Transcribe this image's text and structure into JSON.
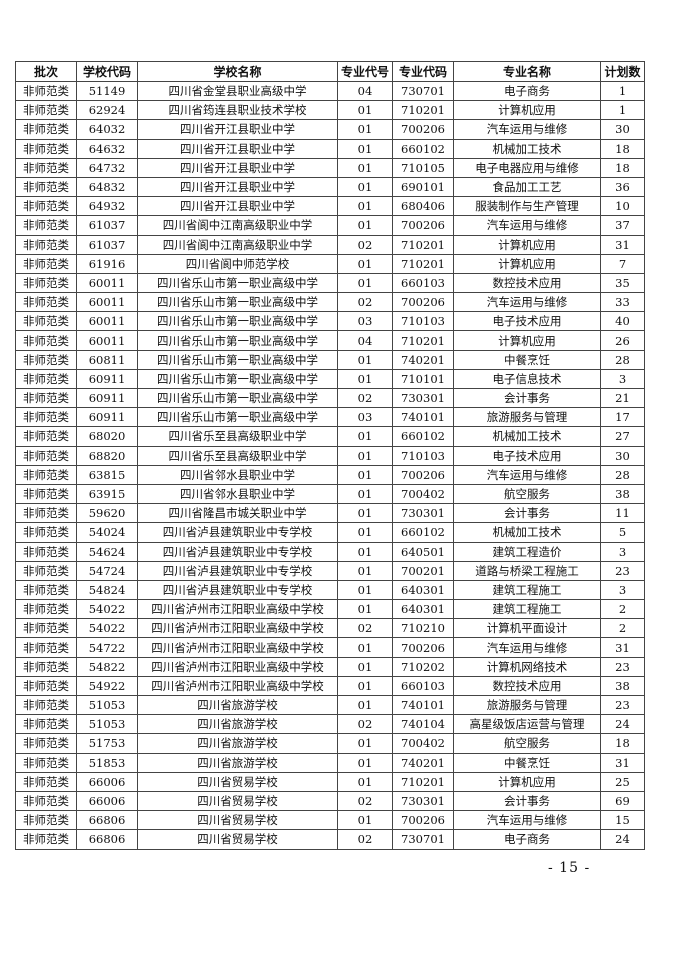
{
  "table": {
    "headers": [
      "批次",
      "学校代码",
      "学校名称",
      "专业代号",
      "专业代码",
      "专业名称",
      "计划数"
    ],
    "rows": [
      [
        "非师范类",
        "51149",
        "四川省金堂县职业高级中学",
        "04",
        "730701",
        "电子商务",
        "1"
      ],
      [
        "非师范类",
        "62924",
        "四川省筠连县职业技术学校",
        "01",
        "710201",
        "计算机应用",
        "1"
      ],
      [
        "非师范类",
        "64032",
        "四川省开江县职业中学",
        "01",
        "700206",
        "汽车运用与维修",
        "30"
      ],
      [
        "非师范类",
        "64632",
        "四川省开江县职业中学",
        "01",
        "660102",
        "机械加工技术",
        "18"
      ],
      [
        "非师范类",
        "64732",
        "四川省开江县职业中学",
        "01",
        "710105",
        "电子电器应用与维修",
        "18"
      ],
      [
        "非师范类",
        "64832",
        "四川省开江县职业中学",
        "01",
        "690101",
        "食品加工工艺",
        "36"
      ],
      [
        "非师范类",
        "64932",
        "四川省开江县职业中学",
        "01",
        "680406",
        "服装制作与生产管理",
        "10"
      ],
      [
        "非师范类",
        "61037",
        "四川省阆中江南高级职业中学",
        "01",
        "700206",
        "汽车运用与维修",
        "37"
      ],
      [
        "非师范类",
        "61037",
        "四川省阆中江南高级职业中学",
        "02",
        "710201",
        "计算机应用",
        "31"
      ],
      [
        "非师范类",
        "61916",
        "四川省阆中师范学校",
        "01",
        "710201",
        "计算机应用",
        "7"
      ],
      [
        "非师范类",
        "60011",
        "四川省乐山市第一职业高级中学",
        "01",
        "660103",
        "数控技术应用",
        "35"
      ],
      [
        "非师范类",
        "60011",
        "四川省乐山市第一职业高级中学",
        "02",
        "700206",
        "汽车运用与维修",
        "33"
      ],
      [
        "非师范类",
        "60011",
        "四川省乐山市第一职业高级中学",
        "03",
        "710103",
        "电子技术应用",
        "40"
      ],
      [
        "非师范类",
        "60011",
        "四川省乐山市第一职业高级中学",
        "04",
        "710201",
        "计算机应用",
        "26"
      ],
      [
        "非师范类",
        "60811",
        "四川省乐山市第一职业高级中学",
        "01",
        "740201",
        "中餐烹饪",
        "28"
      ],
      [
        "非师范类",
        "60911",
        "四川省乐山市第一职业高级中学",
        "01",
        "710101",
        "电子信息技术",
        "3"
      ],
      [
        "非师范类",
        "60911",
        "四川省乐山市第一职业高级中学",
        "02",
        "730301",
        "会计事务",
        "21"
      ],
      [
        "非师范类",
        "60911",
        "四川省乐山市第一职业高级中学",
        "03",
        "740101",
        "旅游服务与管理",
        "17"
      ],
      [
        "非师范类",
        "68020",
        "四川省乐至县高级职业中学",
        "01",
        "660102",
        "机械加工技术",
        "27"
      ],
      [
        "非师范类",
        "68820",
        "四川省乐至县高级职业中学",
        "01",
        "710103",
        "电子技术应用",
        "30"
      ],
      [
        "非师范类",
        "63815",
        "四川省邻水县职业中学",
        "01",
        "700206",
        "汽车运用与维修",
        "28"
      ],
      [
        "非师范类",
        "63915",
        "四川省邻水县职业中学",
        "01",
        "700402",
        "航空服务",
        "38"
      ],
      [
        "非师范类",
        "59620",
        "四川省隆昌市城关职业中学",
        "01",
        "730301",
        "会计事务",
        "11"
      ],
      [
        "非师范类",
        "54024",
        "四川省泸县建筑职业中专学校",
        "01",
        "660102",
        "机械加工技术",
        "5"
      ],
      [
        "非师范类",
        "54624",
        "四川省泸县建筑职业中专学校",
        "01",
        "640501",
        "建筑工程造价",
        "3"
      ],
      [
        "非师范类",
        "54724",
        "四川省泸县建筑职业中专学校",
        "01",
        "700201",
        "道路与桥梁工程施工",
        "23"
      ],
      [
        "非师范类",
        "54824",
        "四川省泸县建筑职业中专学校",
        "01",
        "640301",
        "建筑工程施工",
        "3"
      ],
      [
        "非师范类",
        "54022",
        "四川省泸州市江阳职业高级中学校",
        "01",
        "640301",
        "建筑工程施工",
        "2"
      ],
      [
        "非师范类",
        "54022",
        "四川省泸州市江阳职业高级中学校",
        "02",
        "710210",
        "计算机平面设计",
        "2"
      ],
      [
        "非师范类",
        "54722",
        "四川省泸州市江阳职业高级中学校",
        "01",
        "700206",
        "汽车运用与维修",
        "31"
      ],
      [
        "非师范类",
        "54822",
        "四川省泸州市江阳职业高级中学校",
        "01",
        "710202",
        "计算机网络技术",
        "23"
      ],
      [
        "非师范类",
        "54922",
        "四川省泸州市江阳职业高级中学校",
        "01",
        "660103",
        "数控技术应用",
        "38"
      ],
      [
        "非师范类",
        "51053",
        "四川省旅游学校",
        "01",
        "740101",
        "旅游服务与管理",
        "23"
      ],
      [
        "非师范类",
        "51053",
        "四川省旅游学校",
        "02",
        "740104",
        "高星级饭店运营与管理",
        "24"
      ],
      [
        "非师范类",
        "51753",
        "四川省旅游学校",
        "01",
        "700402",
        "航空服务",
        "18"
      ],
      [
        "非师范类",
        "51853",
        "四川省旅游学校",
        "01",
        "740201",
        "中餐烹饪",
        "31"
      ],
      [
        "非师范类",
        "66006",
        "四川省贸易学校",
        "01",
        "710201",
        "计算机应用",
        "25"
      ],
      [
        "非师范类",
        "66006",
        "四川省贸易学校",
        "02",
        "730301",
        "会计事务",
        "69"
      ],
      [
        "非师范类",
        "66806",
        "四川省贸易学校",
        "01",
        "700206",
        "汽车运用与维修",
        "15"
      ],
      [
        "非师范类",
        "66806",
        "四川省贸易学校",
        "02",
        "730701",
        "电子商务",
        "24"
      ]
    ]
  },
  "page_number": "- 15 -"
}
